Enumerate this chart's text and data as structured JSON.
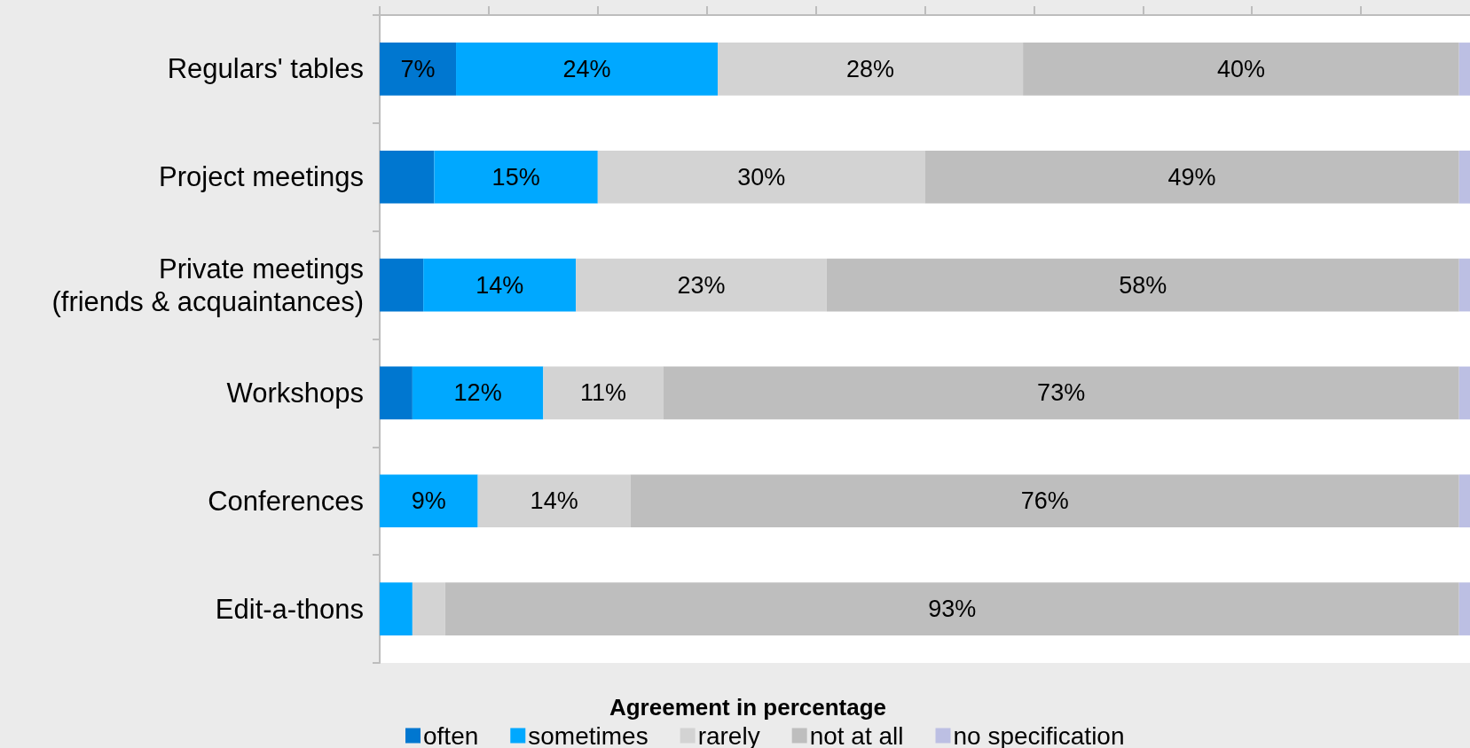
{
  "chart_data": {
    "type": "bar",
    "orientation": "horizontal",
    "stacked": true,
    "categories": [
      "Regulars' tables",
      "Project meetings",
      "Private meetings\n(friends & acquaintances)",
      "Workshops",
      "Conferences",
      "Edit-a-thons"
    ],
    "series": [
      {
        "name": "often",
        "color": "#0077d0",
        "values": [
          7,
          5,
          4,
          3,
          0,
          0
        ],
        "value_labels": [
          "7%",
          null,
          null,
          null,
          null,
          null
        ]
      },
      {
        "name": "sometimes",
        "color": "#00a8ff",
        "values": [
          24,
          15,
          14,
          12,
          9,
          3
        ],
        "value_labels": [
          "24%",
          "15%",
          "14%",
          "12%",
          "9%",
          null
        ]
      },
      {
        "name": "rarely",
        "color": "#d3d3d3",
        "values": [
          28,
          30,
          23,
          11,
          14,
          3
        ],
        "value_labels": [
          "28%",
          "30%",
          "23%",
          "11%",
          "14%",
          null
        ]
      },
      {
        "name": "not at all",
        "color": "#bebebe",
        "values": [
          40,
          49,
          58,
          73,
          76,
          93
        ],
        "value_labels": [
          "40%",
          "49%",
          "58%",
          "73%",
          "76%",
          "93%"
        ]
      },
      {
        "name": "no specification",
        "color": "#bcbfe3",
        "values": [
          1,
          1,
          1,
          1,
          1,
          1
        ]
      }
    ],
    "xlim": [
      0,
      100
    ],
    "xticks": [
      {
        "value": 0,
        "label": null
      },
      {
        "value": 10,
        "label": null
      },
      {
        "value": 20,
        "label": null
      },
      {
        "value": 30,
        "label": null
      },
      {
        "value": 40,
        "label": null
      },
      {
        "value": 50,
        "label": null
      },
      {
        "value": 60,
        "label": null
      },
      {
        "value": 70,
        "label": null
      },
      {
        "value": 80,
        "label": null
      },
      {
        "value": 90,
        "label": null
      }
    ],
    "tick_labels": "y",
    "legend": "bottom",
    "legend_title": "Agreement in percentage"
  }
}
